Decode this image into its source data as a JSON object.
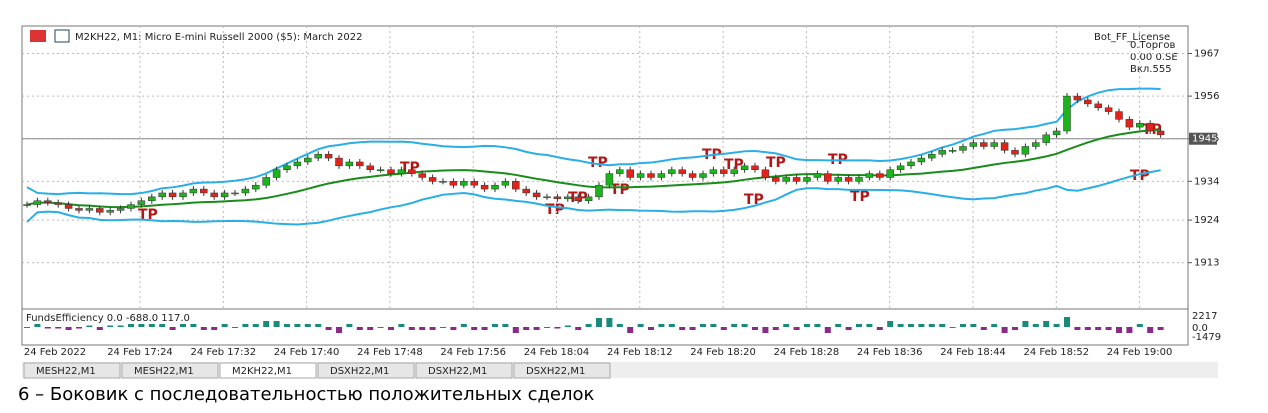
{
  "header": {
    "symbol": "M2KH22, M1:  Micro E-mini Russell 2000 ($5): March 2022",
    "license": "Bot_FF_License",
    "panel_lines": [
      "0.Торгов",
      "0.00 0.SE",
      "Вкл.555"
    ]
  },
  "chart_data": {
    "type": "candlestick",
    "closes": [
      1928,
      1929,
      1928.5,
      1928,
      1927,
      1926.5,
      1927,
      1926,
      1926.5,
      1927,
      1928,
      1929,
      1930,
      1931,
      1930,
      1931,
      1932,
      1931,
      1930,
      1931,
      1931,
      1932,
      1933,
      1935,
      1937,
      1938,
      1939,
      1940,
      1941,
      1940,
      1938,
      1939,
      1938,
      1937,
      1937,
      1936,
      1937,
      1936,
      1935,
      1934,
      1934,
      1933,
      1934,
      1933,
      1932,
      1933,
      1934,
      1932,
      1931,
      1930,
      1930,
      1929.5,
      1930,
      1929,
      1930,
      1933,
      1936,
      1937,
      1935,
      1936,
      1935,
      1936,
      1937,
      1936,
      1935,
      1936,
      1937,
      1936,
      1937,
      1938,
      1937,
      1935,
      1934,
      1935,
      1934,
      1935,
      1936,
      1934,
      1935,
      1934,
      1935,
      1936,
      1935,
      1937,
      1938,
      1939,
      1940,
      1941,
      1942,
      1942,
      1943,
      1944,
      1943,
      1944,
      1942,
      1941,
      1943,
      1944,
      1946,
      1947,
      1956,
      1955,
      1954,
      1953,
      1952,
      1950,
      1948,
      1949,
      1947,
      1946
    ],
    "up_color": "#1db31d",
    "down_color": "#e0231c",
    "band_color": "#29aee8",
    "ma_color": "#1a8c1a",
    "ylim": [
      1901.3,
      1974.1
    ],
    "yticks": [
      1967,
      1956,
      1945,
      1934,
      1924,
      1913
    ],
    "current_price": 1945,
    "grid": true,
    "x_labels": [
      "24 Feb 2022",
      "24 Feb 17:24",
      "24 Feb 17:32",
      "24 Feb 17:40",
      "24 Feb 17:48",
      "24 Feb 17:56",
      "24 Feb 18:04",
      "24 Feb 18:12",
      "24 Feb 18:20",
      "24 Feb 18:28",
      "24 Feb 18:36",
      "24 Feb 18:44",
      "24 Feb 18:52",
      "24 Feb 19:00"
    ],
    "tp_label": "TP"
  },
  "indicator": {
    "label": "FundsEfficiency 0.0 -688.0 117.0",
    "ticks": [
      "2217",
      "0.0",
      "-1479"
    ]
  },
  "tabs": [
    "MESH22,M1",
    "MESH22,M1",
    "M2KH22,M1",
    "DSXH22,M1",
    "DSXH22,M1",
    "DSXH22,M1"
  ],
  "caption": "6 – Боковик с последовательностью положительных сделок"
}
